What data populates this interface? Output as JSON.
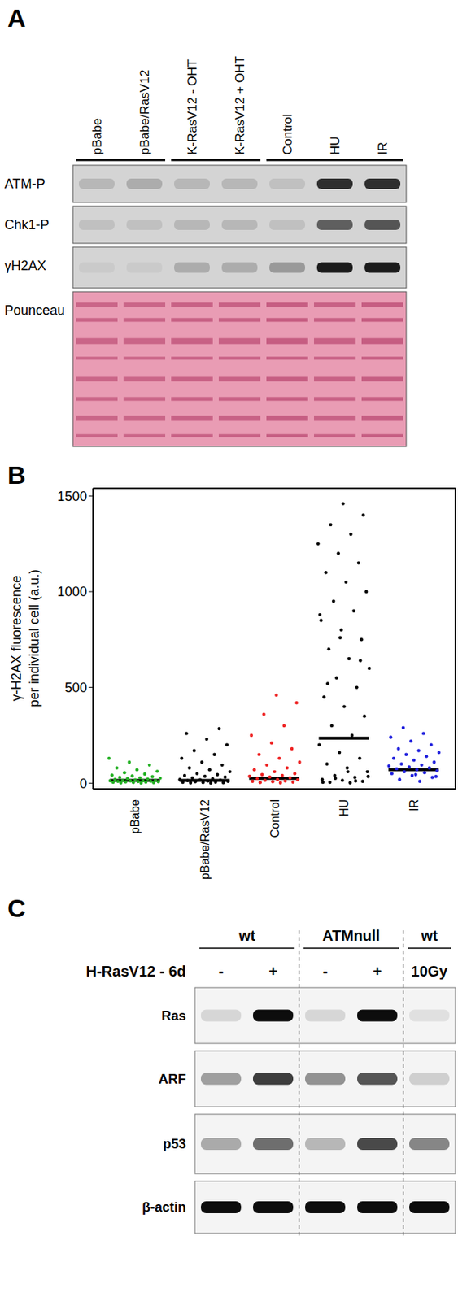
{
  "panel_a": {
    "letter": "A",
    "lanes": [
      "pBabe",
      "pBabe/RasV12",
      "K-RasV12 - OHT",
      "K-RasV12 + OHT",
      "Control",
      "HU",
      "IR"
    ],
    "lane_groups": [
      [
        0,
        1
      ],
      [
        2,
        3
      ],
      [
        4,
        5,
        6
      ]
    ],
    "rows": [
      {
        "label": "ATM-P",
        "intensity": [
          0.15,
          0.2,
          0.15,
          0.15,
          0.1,
          0.85,
          0.85
        ]
      },
      {
        "label": "Chk1-P",
        "intensity": [
          0.1,
          0.1,
          0.15,
          0.15,
          0.1,
          0.6,
          0.65
        ]
      },
      {
        "label": "γH2AX",
        "intensity": [
          0.05,
          0.05,
          0.2,
          0.2,
          0.3,
          0.95,
          0.95
        ]
      },
      {
        "label": "Pounceau",
        "intensity": [
          0.7,
          0.7,
          0.75,
          0.75,
          0.8,
          0.75,
          0.8
        ]
      }
    ]
  },
  "panel_b": {
    "letter": "B"
  },
  "chart_data": {
    "type": "scatter",
    "ylabel": "γ-H2AX fluorescence per individual cell (a.u.)",
    "categories": [
      "pBabe",
      "pBabe/RasV12",
      "Control",
      "HU",
      "IR"
    ],
    "colors": [
      "#22b022",
      "#000000",
      "#ee2222",
      "#000000",
      "#2020dd"
    ],
    "marker": "circle",
    "ylim": [
      -30,
      1540
    ],
    "yticks": [
      0,
      500,
      1000,
      1500
    ],
    "means": [
      15,
      15,
      25,
      235,
      70
    ],
    "values": [
      [
        1,
        2,
        3,
        4,
        5,
        6,
        7,
        8,
        9,
        10,
        11,
        12,
        13,
        14,
        15,
        16,
        18,
        20,
        22,
        24,
        26,
        28,
        30,
        34,
        38,
        42,
        48,
        55,
        62,
        70,
        80,
        95,
        110,
        130
      ],
      [
        1,
        2,
        3,
        4,
        5,
        6,
        8,
        10,
        12,
        14,
        16,
        18,
        20,
        24,
        28,
        32,
        36,
        40,
        45,
        50,
        60,
        70,
        80,
        95,
        110,
        130,
        150,
        170,
        200,
        230,
        260,
        285
      ],
      [
        2,
        4,
        6,
        8,
        10,
        12,
        15,
        18,
        20,
        24,
        28,
        32,
        36,
        40,
        45,
        50,
        60,
        70,
        80,
        95,
        110,
        130,
        150,
        180,
        210,
        250,
        300,
        360,
        420,
        460
      ],
      [
        2,
        5,
        10,
        15,
        20,
        30,
        40,
        60,
        80,
        100,
        130,
        160,
        200,
        250,
        300,
        350,
        400,
        450,
        500,
        550,
        600,
        650,
        700,
        750,
        800,
        850,
        900,
        950,
        1000,
        1050,
        1100,
        1150,
        1200,
        1250,
        1300,
        1350,
        1400,
        1460,
        5,
        12,
        25,
        35,
        60,
        520,
        640,
        760,
        880
      ],
      [
        10,
        20,
        30,
        40,
        50,
        55,
        60,
        65,
        70,
        75,
        80,
        85,
        90,
        95,
        100,
        110,
        120,
        130,
        140,
        150,
        160,
        170,
        180,
        200,
        220,
        240,
        260,
        290,
        35,
        45
      ]
    ]
  },
  "panel_c": {
    "letter": "C",
    "treatment": "H-RasV12 - 6d",
    "lanes": [
      "-",
      "+",
      "-",
      "+",
      "10Gy"
    ],
    "groups": [
      {
        "label": "wt",
        "lanes": [
          0,
          1
        ]
      },
      {
        "label": "ATMnull",
        "lanes": [
          2,
          3
        ]
      },
      {
        "label": "wt",
        "lanes": [
          4
        ]
      }
    ],
    "rows": [
      {
        "label": "Ras",
        "intensity": [
          0.12,
          0.95,
          0.12,
          0.95,
          0.08
        ]
      },
      {
        "label": "ARF",
        "intensity": [
          0.35,
          0.75,
          0.4,
          0.65,
          0.15
        ]
      },
      {
        "label": "p53",
        "intensity": [
          0.3,
          0.55,
          0.25,
          0.7,
          0.45
        ]
      },
      {
        "label": "β-actin",
        "intensity": [
          0.95,
          0.95,
          0.95,
          0.95,
          0.95
        ]
      }
    ]
  }
}
